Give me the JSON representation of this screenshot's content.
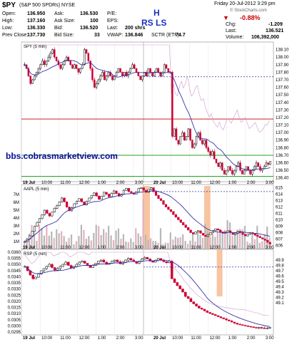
{
  "header": {
    "symbol": "$PY",
    "name": "(S&P 500 SPDRs)",
    "exchange": "NYSE",
    "date": "Friday 20-Jul-2012 3:29 pm",
    "stats": [
      {
        "label": "Open:",
        "value": "136.950"
      },
      {
        "label": "High:",
        "value": "137.160"
      },
      {
        "label": "Low:",
        "value": "136.330"
      },
      {
        "label": "Prev Close:",
        "value": "137.730"
      },
      {
        "label": "Ask:",
        "value": "136.530"
      },
      {
        "label": "Ask Size:",
        "value": "100"
      },
      {
        "label": "Bid:",
        "value": "136.520"
      },
      {
        "label": "Bid Size:",
        "value": "33"
      },
      {
        "label": "P/E:",
        "value": ""
      },
      {
        "label": "EPS:",
        "value": ""
      },
      {
        "label": "Last:",
        "value": "200 shrs"
      },
      {
        "label": "VWAP:",
        "value": "136.846"
      },
      {
        "label": "SCTR (ETF):",
        "value": "74.7"
      }
    ],
    "change_pct": "-0.88%",
    "chg_label": "Chg:",
    "chg_value": "-1.209",
    "last_label": "Last:",
    "last_value": "136.521",
    "volume_label": "Volume:",
    "volume_value": "106,392,000",
    "watermark_site": "© StockCharts.com",
    "markers": {
      "h": "H",
      "rs": "RS",
      "ls": "LS"
    }
  },
  "watermark": "bbs.cobrasmarketview.com",
  "colors": {
    "price_up": "#000000",
    "price_down": "#cc0033",
    "ma": "#3333aa",
    "envelope": "#cc99cc",
    "hline_red": "#cc0000",
    "hline_green": "#009900",
    "dotted": "#3333aa",
    "highlight": "#f4b283"
  },
  "chart_data": [
    {
      "type": "candlestick",
      "title": "SPY (5 min)",
      "ylim": [
        136.35,
        138.2
      ],
      "yticks": [
        136.4,
        136.5,
        136.6,
        136.7,
        136.8,
        136.9,
        137.0,
        137.1,
        137.2,
        137.3,
        137.4,
        137.5,
        137.6,
        137.7,
        137.8,
        137.9,
        138.0,
        138.1
      ],
      "xlabels": [
        "19 Jul",
        "10:00",
        "11:00",
        "12:00",
        "1:00",
        "2:00",
        "3:00",
        "20 Jul",
        "10:00",
        "11:00",
        "12:00",
        "1:00",
        "2:00",
        "3:00"
      ],
      "hlines": [
        {
          "y": 137.18,
          "color": "red"
        },
        {
          "y": 136.7,
          "color": "green"
        },
        {
          "y": 136.42,
          "color": "green"
        },
        {
          "y": 137.74,
          "color": "dotted"
        }
      ],
      "close": [
        137.9,
        137.85,
        137.75,
        137.65,
        137.7,
        137.75,
        137.8,
        137.85,
        137.9,
        137.95,
        137.9,
        137.95,
        138.0,
        138.05,
        138.1,
        138.0,
        137.95,
        137.9,
        137.85,
        137.9,
        137.95,
        138.0,
        137.95,
        137.9,
        137.85,
        137.9,
        137.85,
        137.8,
        137.85,
        137.9,
        138.1,
        138.05,
        137.95,
        137.85,
        137.7,
        137.6,
        137.65,
        137.7,
        137.75,
        137.8,
        137.7,
        137.75,
        137.8,
        137.75,
        137.7,
        137.75,
        137.8,
        137.85,
        137.8,
        137.75,
        137.8,
        137.75,
        137.8,
        137.85,
        137.9,
        137.85,
        137.8,
        137.75,
        137.7,
        137.75,
        137.8,
        137.75,
        137.85,
        137.8,
        137.75,
        137.8,
        137.85,
        137.8,
        137.75,
        137.8,
        137.9,
        137.85,
        137.8,
        137.8,
        136.95,
        137.05,
        136.9,
        136.85,
        136.95,
        137.0,
        136.9,
        136.95,
        137.05,
        136.9,
        136.8,
        136.85,
        136.95,
        137.0,
        136.9,
        136.85,
        136.9,
        136.8,
        136.75,
        136.7,
        136.75,
        136.65,
        136.6,
        136.55,
        136.6,
        136.5,
        136.45,
        136.5,
        136.55,
        136.5,
        136.45,
        136.5,
        136.55,
        136.6,
        136.5,
        136.45,
        136.5,
        136.55,
        136.5,
        136.45,
        136.5,
        136.55,
        136.6,
        136.55,
        136.5,
        136.52,
        136.55,
        136.6,
        136.58,
        136.62
      ],
      "vwap_ma": "20-period"
    },
    {
      "type": "candlestick+volume",
      "title": "AAPL (5 min)",
      "ylim": [
        605.5,
        615.5
      ],
      "yticks": [
        606,
        607,
        608,
        609,
        610,
        611,
        612,
        613,
        614,
        615
      ],
      "volume_ticks": [
        "1M",
        "2M",
        "3M",
        "4M",
        "5M",
        "6M",
        "7M"
      ],
      "hlines": [
        {
          "y": 614.4,
          "color": "dotted"
        }
      ],
      "close": [
        606.6,
        607.0,
        607.5,
        608.2,
        609.0,
        609.6,
        610.2,
        610.8,
        611.5,
        611.0,
        610.6,
        611.2,
        611.8,
        612.2,
        612.8,
        613.4,
        612.8,
        612.0,
        611.4,
        611.9,
        612.5,
        612.9,
        613.3,
        612.8,
        612.3,
        612.9,
        613.4,
        613.8,
        614.2,
        613.7,
        613.2,
        613.7,
        614.3,
        614.0,
        613.6,
        614.1,
        614.5,
        614.1,
        613.7,
        614.0,
        614.6,
        614.9,
        614.4,
        614.2,
        614.0,
        614.4,
        614.9,
        615.0,
        614.6,
        614.3,
        614.7,
        615.0,
        614.4,
        613.8,
        613.3,
        613.0,
        612.4,
        612.0,
        611.6,
        611.3,
        610.8,
        610.4,
        610.0,
        609.6,
        609.2,
        608.8,
        608.4,
        608.0,
        607.8,
        608.1,
        608.3,
        607.9,
        607.6,
        607.4,
        607.7,
        608.0,
        608.3,
        608.6,
        608.4,
        608.1,
        607.9,
        608.1,
        608.3,
        608.0,
        607.7,
        607.9,
        608.2,
        608.0,
        607.7,
        607.5,
        607.8,
        608.0,
        607.8,
        607.6,
        607.4,
        607.2,
        607.0,
        606.8,
        606.5,
        606.2
      ],
      "highlights": [
        {
          "start": 0.48,
          "end": 0.51
        },
        {
          "start": 0.725,
          "end": 0.75
        }
      ]
    },
    {
      "type": "candlestick",
      "title": "RSP (5 min)",
      "ylim": [
        48.5,
        50.1
      ],
      "left_ticks": [
        "0.0360",
        "0.0355",
        "0.0350",
        "0.0345",
        "0.0340",
        "0.0335",
        "0.0330",
        "0.0325",
        "0.0320",
        "0.0315",
        "0.0310",
        "0.0305",
        "0.0300",
        "0.0295"
      ],
      "right_ticks": [
        {
          "v": 49.9,
          "t": "49.9"
        },
        {
          "v": 49.8,
          "t": "49.8"
        },
        {
          "v": 49.7,
          "t": "49.7"
        },
        {
          "v": 49.6,
          "t": "49.6"
        },
        {
          "v": 49.5,
          "t": "49.5"
        },
        {
          "v": 49.4,
          "t": "49.4"
        },
        {
          "v": 49.3,
          "t": "49.3"
        },
        {
          "v": 49.2,
          "t": "49.2"
        },
        {
          "v": 49.1,
          "t": "49.1"
        }
      ],
      "hlines": [
        {
          "y": 49.77,
          "color": "dotted"
        }
      ],
      "close": [
        49.78,
        49.7,
        49.62,
        49.55,
        49.58,
        49.64,
        49.7,
        49.74,
        49.78,
        49.82,
        49.76,
        49.71,
        49.74,
        49.78,
        49.82,
        49.86,
        49.8,
        49.75,
        49.78,
        49.82,
        49.86,
        49.88,
        49.84,
        49.8,
        49.76,
        49.8,
        49.84,
        49.88,
        49.9,
        49.86,
        49.82,
        49.84,
        49.88,
        49.9,
        49.87,
        49.83,
        49.86,
        49.9,
        49.93,
        49.9,
        49.87,
        49.84,
        49.88,
        49.92,
        49.95,
        49.92,
        49.88,
        49.86,
        49.9,
        49.93,
        49.9,
        49.87,
        49.85,
        49.88,
        49.55,
        49.48,
        49.42,
        49.36,
        49.3,
        49.22,
        49.18,
        49.12,
        49.08,
        49.04,
        49.0,
        48.98,
        48.95,
        48.92,
        48.9,
        48.88,
        48.86,
        48.84,
        48.82,
        48.8,
        48.78,
        48.76,
        48.74,
        48.72,
        48.7,
        48.69,
        48.68,
        48.67,
        48.66,
        48.65,
        48.64,
        48.63,
        48.64,
        48.63,
        48.62,
        48.63,
        48.64
      ]
    }
  ]
}
